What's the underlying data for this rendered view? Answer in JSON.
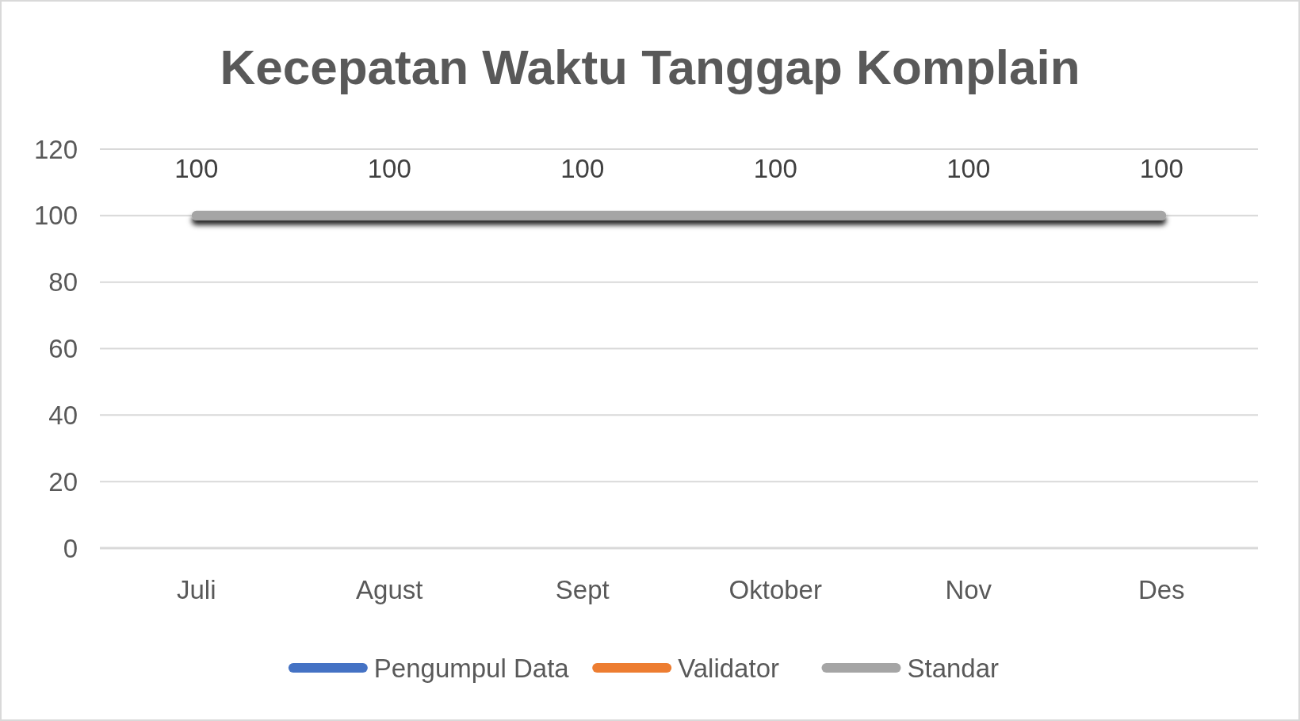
{
  "chart_data": {
    "type": "line",
    "title": "Kecepatan Waktu Tanggap Komplain",
    "categories": [
      "Juli",
      "Agust",
      "Sept",
      "Oktober",
      "Nov",
      "Des"
    ],
    "series": [
      {
        "name": "Pengumpul Data",
        "color": "#4472c4",
        "values": [
          null,
          null,
          null,
          null,
          null,
          null
        ]
      },
      {
        "name": "Validator",
        "color": "#ed7d31",
        "values": [
          null,
          null,
          null,
          null,
          null,
          null
        ]
      },
      {
        "name": "Standar",
        "color": "#a5a5a5",
        "values": [
          100,
          100,
          100,
          100,
          100,
          100
        ]
      }
    ],
    "ylim": [
      0,
      120
    ],
    "yticks": [
      0,
      20,
      40,
      60,
      80,
      100,
      120
    ],
    "grid": "y",
    "legend": "bottom",
    "data_labels": true
  }
}
